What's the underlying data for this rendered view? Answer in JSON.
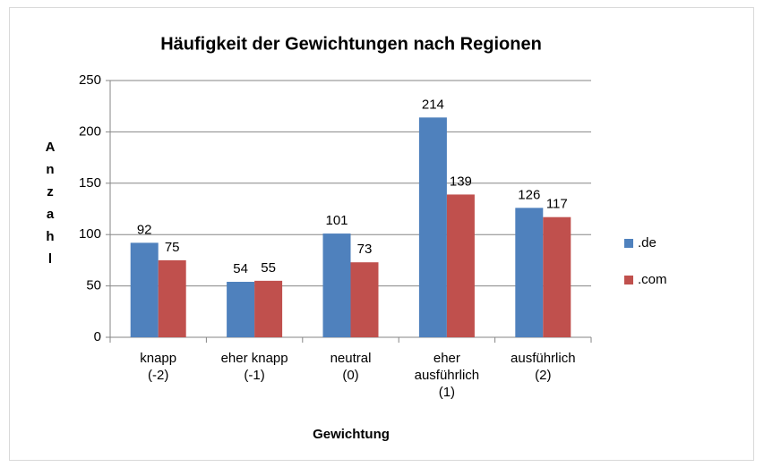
{
  "chart_data": {
    "type": "bar",
    "title": "Häufigkeit der Gewichtungen nach Regionen",
    "x_label": "Gewichtung",
    "y_label": "Anzahl",
    "categories": [
      "knapp\n(-2)",
      "eher knapp\n(-1)",
      "neutral\n(0)",
      "eher\nausführlich\n(1)",
      "ausführlich\n(2)"
    ],
    "series": [
      {
        "name": ".de",
        "color": "#4f81bd",
        "values": [
          92,
          54,
          101,
          214,
          126
        ]
      },
      {
        "name": ".com",
        "color": "#c0504d",
        "values": [
          75,
          55,
          73,
          139,
          117
        ]
      }
    ],
    "ylim": [
      0,
      250
    ],
    "yticks": [
      0,
      50,
      100,
      150,
      200,
      250
    ],
    "grid": true,
    "legend": "right"
  }
}
